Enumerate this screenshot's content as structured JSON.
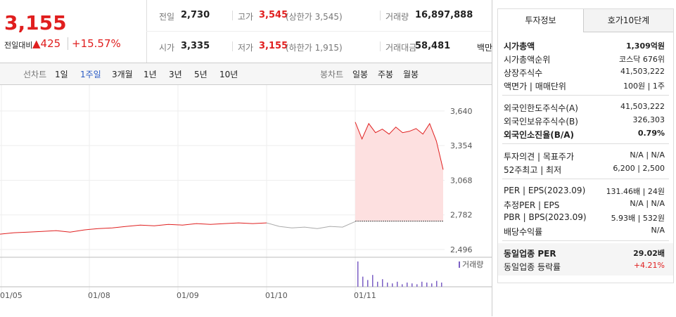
{
  "header": {
    "price": "3,155",
    "change_label": "전일대비",
    "change": "▲425",
    "rate": "+15.57%",
    "stats": [
      {
        "label": "전일",
        "value": "2,730",
        "note": null
      },
      {
        "label": "고가",
        "value": "3,545",
        "note": "(상한가 3,545)"
      },
      {
        "label": "거래량",
        "value": "16,897,888",
        "note": null
      },
      {
        "label": "시가",
        "value": "3,335",
        "note": null
      },
      {
        "label": "저가",
        "value": "3,155",
        "note": "(하한가 1,915)"
      },
      {
        "label": "거래대금",
        "value": "58,481",
        "note": "백만"
      }
    ]
  },
  "tabs": {
    "line": [
      "선차트",
      "1일",
      "1주일",
      "3개월",
      "1년",
      "3년",
      "5년",
      "10년"
    ],
    "selected": "1주일",
    "candle": [
      "봉차트",
      "일봉",
      "주봉",
      "월봉"
    ]
  },
  "chart_data": {
    "type": "line",
    "ylim": [
      2438,
      3854
    ],
    "yticks": [
      {
        "value": 3640,
        "label": "3,640"
      },
      {
        "value": 3354,
        "label": "3,354"
      },
      {
        "value": 3068,
        "label": "3,068"
      },
      {
        "value": 2782,
        "label": "2,782"
      },
      {
        "value": 2496,
        "label": "2,496"
      }
    ],
    "x_labels": [
      "01/05",
      "01/08",
      "01/09",
      "01/10",
      "01/11"
    ],
    "reference": 2730,
    "series": [
      {
        "color": "#e02020",
        "values": [
          2623,
          2635,
          2640,
          2646,
          2652,
          2640,
          2658,
          2669,
          2675,
          2687,
          2698,
          2692,
          2704,
          2698,
          2710,
          2704,
          2710,
          2716,
          2710,
          2716
        ]
      },
      {
        "color": "#aaaaaa",
        "values": [
          2716,
          2687,
          2675,
          2681,
          2669,
          2687,
          2681,
          2727
        ]
      },
      {
        "color": "#e02020",
        "values": [
          3548,
          3409,
          3536,
          3461,
          3490,
          3449,
          3507,
          3461,
          3472,
          3495,
          3449,
          3536,
          3391,
          3155
        ]
      }
    ],
    "volume_label": "거래량",
    "volume": [
      30,
      12,
      8,
      14,
      6,
      9,
      5,
      4,
      6,
      3,
      5,
      4,
      3,
      6,
      5,
      4,
      7,
      5
    ]
  },
  "panel": {
    "tabs": [
      "투자정보",
      "호가10단계"
    ],
    "sections": [
      [
        {
          "label": "시가총액",
          "value": "1,309억원",
          "bold": true
        },
        {
          "label": "시가총액순위",
          "value": "코스닥 676위"
        },
        {
          "label": "상장주식수",
          "value": "41,503,222"
        },
        {
          "label": "액면가 | 매매단위",
          "value": "100원 | 1주"
        }
      ],
      [
        {
          "label": "외국인한도주식수(A)",
          "value": "41,503,222"
        },
        {
          "label": "외국인보유주식수(B)",
          "value": "326,303"
        },
        {
          "label": "외국인소진율(B/A)",
          "value": "0.79%",
          "bold": true
        }
      ],
      [
        {
          "label": "투자의견 | 목표주가",
          "value": "N/A | N/A"
        },
        {
          "label": "52주최고 | 최저",
          "value": "6,200 | 2,500"
        }
      ],
      [
        {
          "label": "PER | EPS(2023.09)",
          "value": "131.46배 | 24원"
        },
        {
          "label": "추정PER | EPS",
          "value": "N/A | N/A"
        },
        {
          "label": "PBR | BPS(2023.09)",
          "value": "5.93배 | 532원"
        },
        {
          "label": "배당수익률",
          "value": "N/A"
        }
      ],
      [
        {
          "label": "동일업종 PER",
          "value": "29.02배",
          "bold": true
        },
        {
          "label": "동일업종 등락률",
          "value": "+4.21%",
          "red": true
        }
      ]
    ]
  }
}
